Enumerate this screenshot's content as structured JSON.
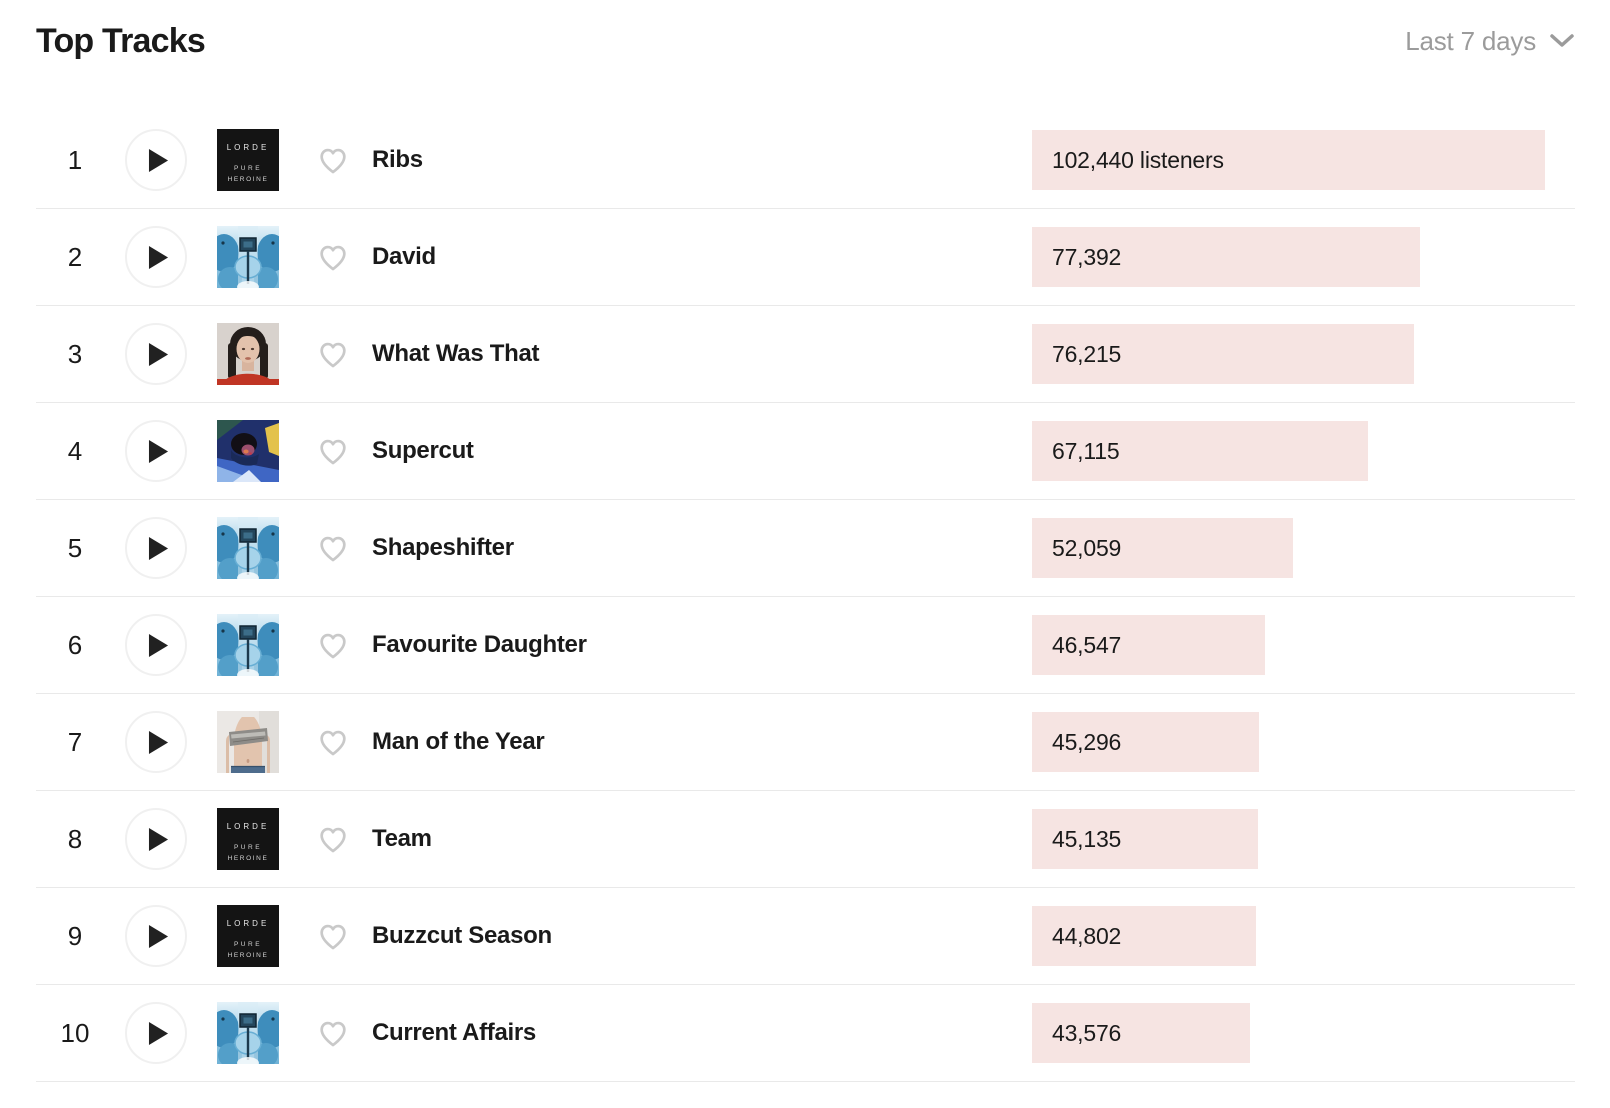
{
  "header": {
    "title": "Top Tracks",
    "period_selector": {
      "label": "Last 7 days",
      "icon": "chevron-down-icon"
    }
  },
  "colors": {
    "bar_fill": "#f6e4e2",
    "text_primary": "#1a1a1a",
    "text_muted": "#9b9b9b",
    "divider": "#e9e9e9",
    "heart_outline": "#c9c9c9"
  },
  "album_art_text": {
    "lorde": "LORDE",
    "pure": "PURE",
    "heroine": "HEROINE"
  },
  "list": {
    "tracks": [
      {
        "rank": "1",
        "title": "Ribs",
        "listeners": 102440,
        "listeners_label": "102,440 listeners",
        "album_art": "pure-heroine"
      },
      {
        "rank": "2",
        "title": "David",
        "listeners": 77392,
        "listeners_label": "77,392",
        "album_art": "virgin"
      },
      {
        "rank": "3",
        "title": "What Was That",
        "listeners": 76215,
        "listeners_label": "76,215",
        "album_art": "what-was-that"
      },
      {
        "rank": "4",
        "title": "Supercut",
        "listeners": 67115,
        "listeners_label": "67,115",
        "album_art": "melodrama"
      },
      {
        "rank": "5",
        "title": "Shapeshifter",
        "listeners": 52059,
        "listeners_label": "52,059",
        "album_art": "virgin"
      },
      {
        "rank": "6",
        "title": "Favourite Daughter",
        "listeners": 46547,
        "listeners_label": "46,547",
        "album_art": "virgin"
      },
      {
        "rank": "7",
        "title": "Man of the Year",
        "listeners": 45296,
        "listeners_label": "45,296",
        "album_art": "man-of-the-year"
      },
      {
        "rank": "8",
        "title": "Team",
        "listeners": 45135,
        "listeners_label": "45,135",
        "album_art": "pure-heroine"
      },
      {
        "rank": "9",
        "title": "Buzzcut Season",
        "listeners": 44802,
        "listeners_label": "44,802",
        "album_art": "pure-heroine"
      },
      {
        "rank": "10",
        "title": "Current Affairs",
        "listeners": 43576,
        "listeners_label": "43,576",
        "album_art": "virgin"
      }
    ]
  }
}
